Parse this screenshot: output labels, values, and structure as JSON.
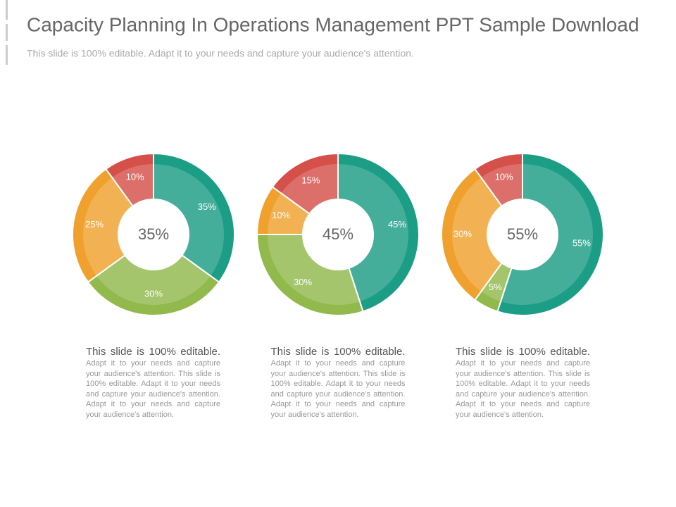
{
  "header": {
    "title": "Capacity Planning In Operations Management PPT Sample Download",
    "subtitle": "This slide is 100% editable. Adapt it to your needs and capture your audience's attention."
  },
  "chart_data": [
    {
      "type": "donut",
      "center_label": "35%",
      "values": [
        35,
        30,
        25,
        10
      ],
      "value_labels": [
        "35%",
        "30%",
        "25%",
        "10%"
      ],
      "colors": [
        "#1c9d85",
        "#91b94c",
        "#f0a02c",
        "#d6504a"
      ],
      "caption_lead": "This slide is 100% editable.",
      "caption_body": "Adapt it to your needs and capture your audience's attention. This slide is 100% editable. Adapt it to your needs and capture your audience's attention. Adapt it to your needs and capture your audience's attention."
    },
    {
      "type": "donut",
      "center_label": "45%",
      "values": [
        45,
        30,
        10,
        15
      ],
      "value_labels": [
        "45%",
        "30%",
        "10%",
        "15%"
      ],
      "colors": [
        "#1c9d85",
        "#91b94c",
        "#f0a02c",
        "#d6504a"
      ],
      "caption_lead": "This slide is 100% editable.",
      "caption_body": "Adapt it to your needs and capture your audience's attention. This slide is 100% editable. Adapt it to your needs and capture your audience's attention. Adapt it to your needs and capture your audience's attention."
    },
    {
      "type": "donut",
      "center_label": "55%",
      "values": [
        55,
        5,
        30,
        10
      ],
      "value_labels": [
        "55%",
        "5%",
        "30%",
        "10%"
      ],
      "colors": [
        "#1c9d85",
        "#91b94c",
        "#f0a02c",
        "#d6504a"
      ],
      "caption_lead": "This slide is 100% editable.",
      "caption_body": "Adapt it to your needs and capture your audience's attention. This slide is 100% editable. Adapt it to your needs and capture your audience's attention. Adapt it to your needs and capture your audience's attention."
    }
  ]
}
